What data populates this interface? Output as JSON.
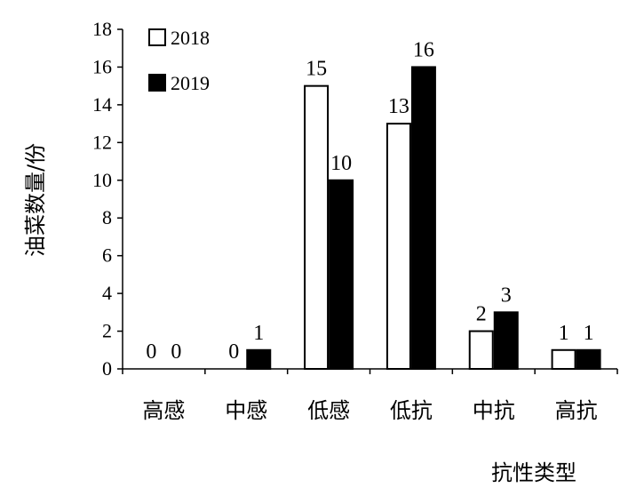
{
  "chart_data": {
    "type": "bar",
    "title": "",
    "xlabel": "抗性类型",
    "ylabel": "油菜数量/份",
    "categories": [
      "高感",
      "中感",
      "低感",
      "低抗",
      "中抗",
      "高抗"
    ],
    "series": [
      {
        "name": "2018",
        "values": [
          0,
          0,
          15,
          13,
          2,
          1
        ],
        "fill": "#ffffff"
      },
      {
        "name": "2019",
        "values": [
          0,
          1,
          10,
          16,
          3,
          1
        ],
        "fill": "#000000"
      }
    ],
    "ylim": [
      0,
      18
    ],
    "yticks": [
      0,
      2,
      4,
      6,
      8,
      10,
      12,
      14,
      16,
      18
    ],
    "legend_position": "top-left",
    "grid": false
  }
}
